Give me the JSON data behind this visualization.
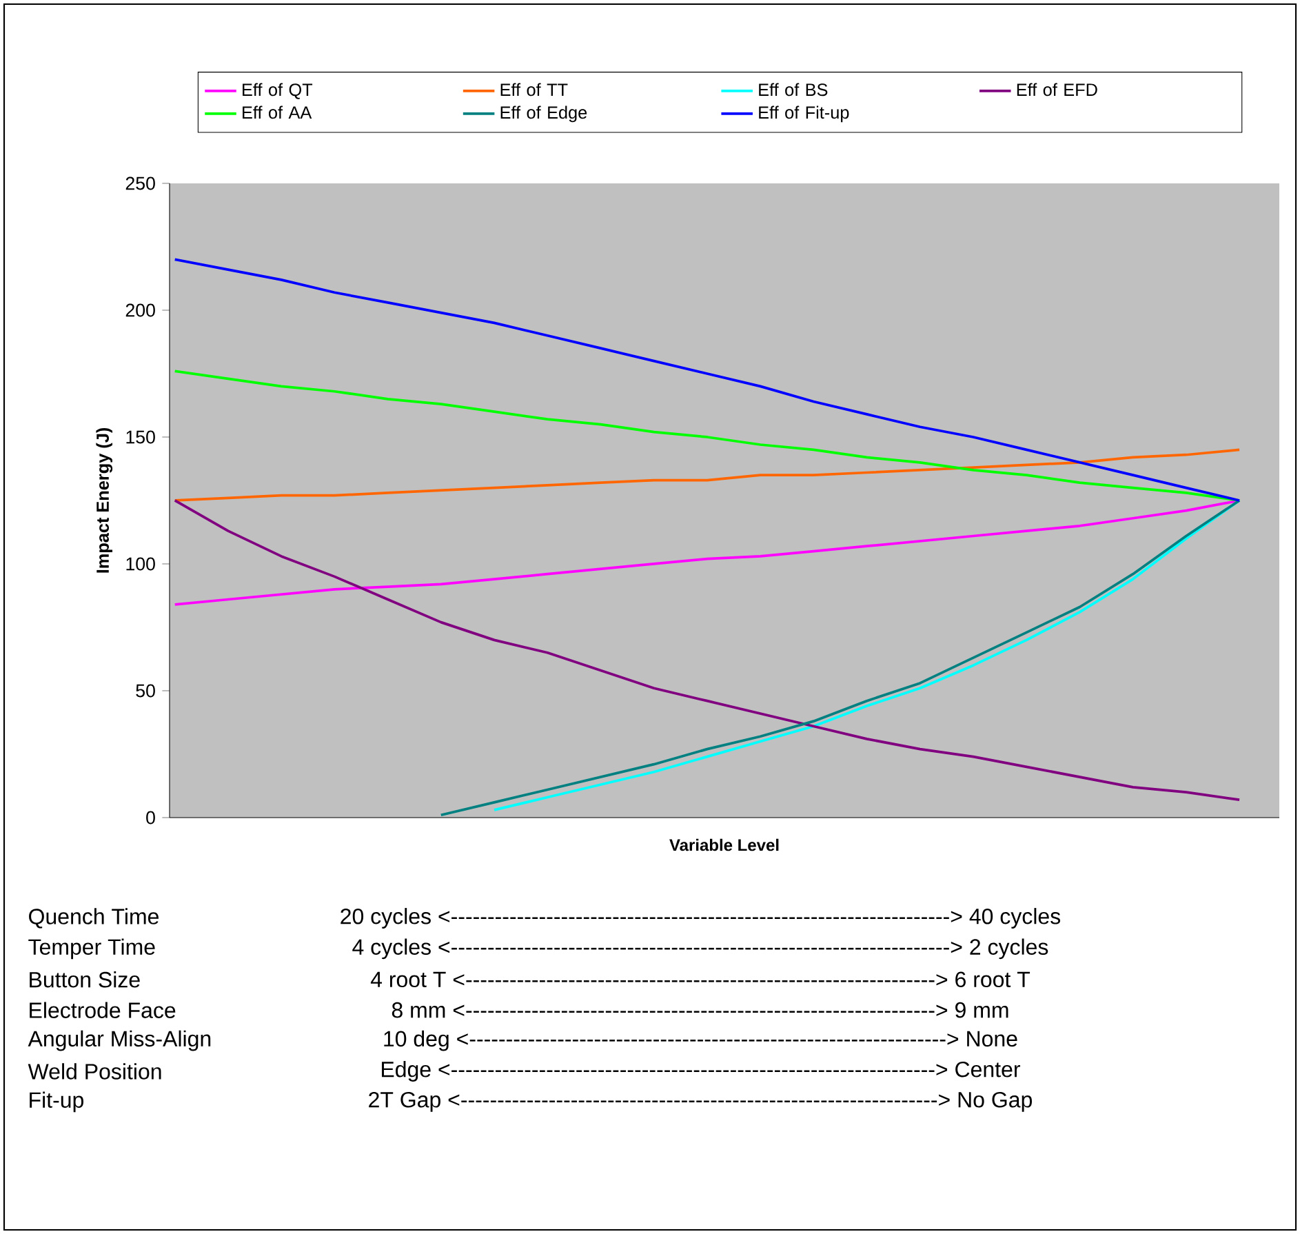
{
  "chart_data": {
    "type": "line",
    "xlabel": "Variable Level",
    "ylabel": "Impact Energy (J)",
    "categories": [
      null,
      null,
      null,
      null,
      null,
      null,
      null,
      null,
      null,
      null,
      null,
      null,
      null,
      null,
      null,
      null,
      null,
      null,
      null,
      null,
      null
    ],
    "ylim": [
      0,
      250
    ],
    "yticks": [
      0,
      50,
      100,
      150,
      200,
      250
    ],
    "tick_labels": "y",
    "grid": false,
    "legend": "top",
    "marker": "none",
    "line_style": "solid",
    "series": [
      {
        "name": "Eff of QT",
        "color": "#ff00ff",
        "values": [
          84,
          86,
          88,
          90,
          91,
          92,
          94,
          96,
          98,
          100,
          102,
          103,
          105,
          107,
          109,
          111,
          113,
          115,
          118,
          121,
          125
        ]
      },
      {
        "name": "Eff of TT",
        "color": "#ff6600",
        "values": [
          125,
          126,
          127,
          127,
          128,
          129,
          130,
          131,
          132,
          133,
          133,
          135,
          135,
          136,
          137,
          138,
          139,
          140,
          142,
          143,
          145
        ]
      },
      {
        "name": "Eff of BS",
        "color": "#00ffff",
        "values": [
          null,
          null,
          null,
          null,
          null,
          null,
          3,
          8,
          13,
          18,
          24,
          30,
          36,
          44,
          51,
          60,
          70,
          81,
          94,
          110,
          125
        ]
      },
      {
        "name": "Eff of EFD",
        "color": "#800080",
        "values": [
          125,
          113,
          103,
          95,
          86,
          77,
          70,
          65,
          58,
          51,
          46,
          41,
          36,
          31,
          27,
          24,
          20,
          16,
          12,
          10,
          7
        ]
      },
      {
        "name": "Eff of AA",
        "color": "#00ff00",
        "values": [
          176,
          173,
          170,
          168,
          165,
          163,
          160,
          157,
          155,
          152,
          150,
          147,
          145,
          142,
          140,
          137,
          135,
          132,
          130,
          128,
          125
        ]
      },
      {
        "name": "Eff of Edge",
        "color": "#008080",
        "values": [
          null,
          null,
          null,
          null,
          null,
          1,
          6,
          11,
          16,
          21,
          27,
          32,
          38,
          46,
          53,
          63,
          73,
          83,
          96,
          111,
          125
        ]
      },
      {
        "name": "Eff of Fit-up",
        "color": "#0000ff",
        "values": [
          220,
          216,
          212,
          207,
          203,
          199,
          195,
          190,
          185,
          180,
          175,
          170,
          164,
          159,
          154,
          150,
          145,
          140,
          135,
          130,
          125
        ]
      }
    ],
    "annotations": [
      "Quench Time",
      "20 cycles <--------------------------------------------------------------------> 40 cycles",
      "Temper Time",
      "4 cycles <--------------------------------------------------------------------> 2 cycles",
      "Button Size",
      "4 root T  <----------------------------------------------------------------> 6 root T",
      "Electrode Face",
      "8 mm <----------------------------------------------------------------> 9 mm",
      "Angular Miss-Align",
      "10 deg <-----------------------------------------------------------------> None",
      "Weld Position",
      "Edge <------------------------------------------------------------------> Center",
      "Fit-up",
      "2T Gap <-----------------------------------------------------------------> No Gap"
    ]
  }
}
